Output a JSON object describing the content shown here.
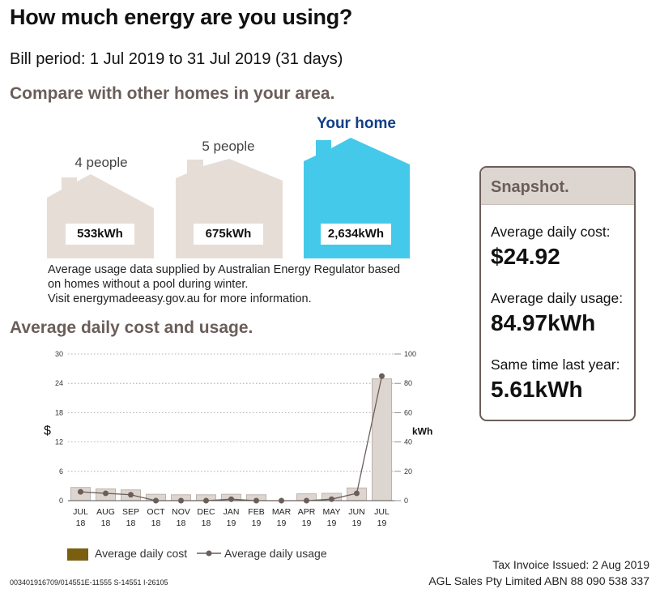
{
  "header": {
    "title": "How much energy are you using?",
    "bill_period": "Bill period: 1 Jul 2019 to 31 Jul 2019 (31 days)"
  },
  "compare": {
    "heading": "Compare with other homes in your area.",
    "homes": [
      {
        "label": "4 people",
        "usage": "533kWh"
      },
      {
        "label": "5 people",
        "usage": "675kWh"
      },
      {
        "label": "Your home",
        "usage": "2,634kWh"
      }
    ],
    "note_lines": [
      "Average usage data supplied by Australian Energy Regulator based",
      "on homes without a pool during winter.",
      "Visit energymadeeasy.gov.au for more information."
    ],
    "colors": {
      "neighbor": "#e6ddd6",
      "your_home": "#45c9ea",
      "your_label": "#123f86"
    }
  },
  "snapshot": {
    "title": "Snapshot.",
    "items": [
      {
        "label": "Average daily cost:",
        "value": "$24.92"
      },
      {
        "label": "Average daily usage:",
        "value": "84.97kWh"
      },
      {
        "label": "Same time last year:",
        "value": "5.61kWh"
      }
    ]
  },
  "chart_heading": "Average daily cost and usage.",
  "chart_data": {
    "type": "bar",
    "title": "Average daily cost and usage.",
    "categories": [
      [
        "JUL",
        "18"
      ],
      [
        "AUG",
        "18"
      ],
      [
        "SEP",
        "18"
      ],
      [
        "OCT",
        "18"
      ],
      [
        "NOV",
        "18"
      ],
      [
        "DEC",
        "18"
      ],
      [
        "JAN",
        "19"
      ],
      [
        "FEB",
        "19"
      ],
      [
        "MAR",
        "19"
      ],
      [
        "APR",
        "19"
      ],
      [
        "MAY",
        "19"
      ],
      [
        "JUN",
        "19"
      ],
      [
        "JUL",
        "19"
      ]
    ],
    "series": [
      {
        "name": "Average daily cost",
        "type": "bar",
        "axis": "left",
        "values": [
          2.7,
          2.4,
          2.2,
          1.3,
          1.2,
          1.2,
          1.3,
          1.2,
          0,
          1.4,
          1.5,
          2.6,
          24.92
        ]
      },
      {
        "name": "Average daily usage",
        "type": "line",
        "axis": "right",
        "values": [
          6,
          5,
          4,
          0,
          0,
          0,
          1,
          0,
          0,
          0,
          1,
          5,
          84.97
        ]
      }
    ],
    "ylabel": "$",
    "y2label": "kWh",
    "ylim": [
      0,
      30
    ],
    "y2lim": [
      0,
      100
    ],
    "yticks": [
      0,
      6,
      12,
      18,
      24,
      30
    ],
    "y2ticks": [
      0,
      20,
      40,
      60,
      80,
      100
    ],
    "colors": {
      "bar_fill": "#ddd5cf",
      "bar_stroke": "#bdb3ac",
      "line": "#6b5e5a",
      "legend_cost": "#7a5f10"
    }
  },
  "legend": {
    "cost": "Average daily cost",
    "usage": "Average daily usage"
  },
  "footer": {
    "invoice": "Tax Invoice Issued: 2 Aug 2019",
    "abn": "AGL Sales Pty Limited ABN 88 090 538 337",
    "reference": "003401916709/014551E-11555 S-14551 I-26105"
  }
}
